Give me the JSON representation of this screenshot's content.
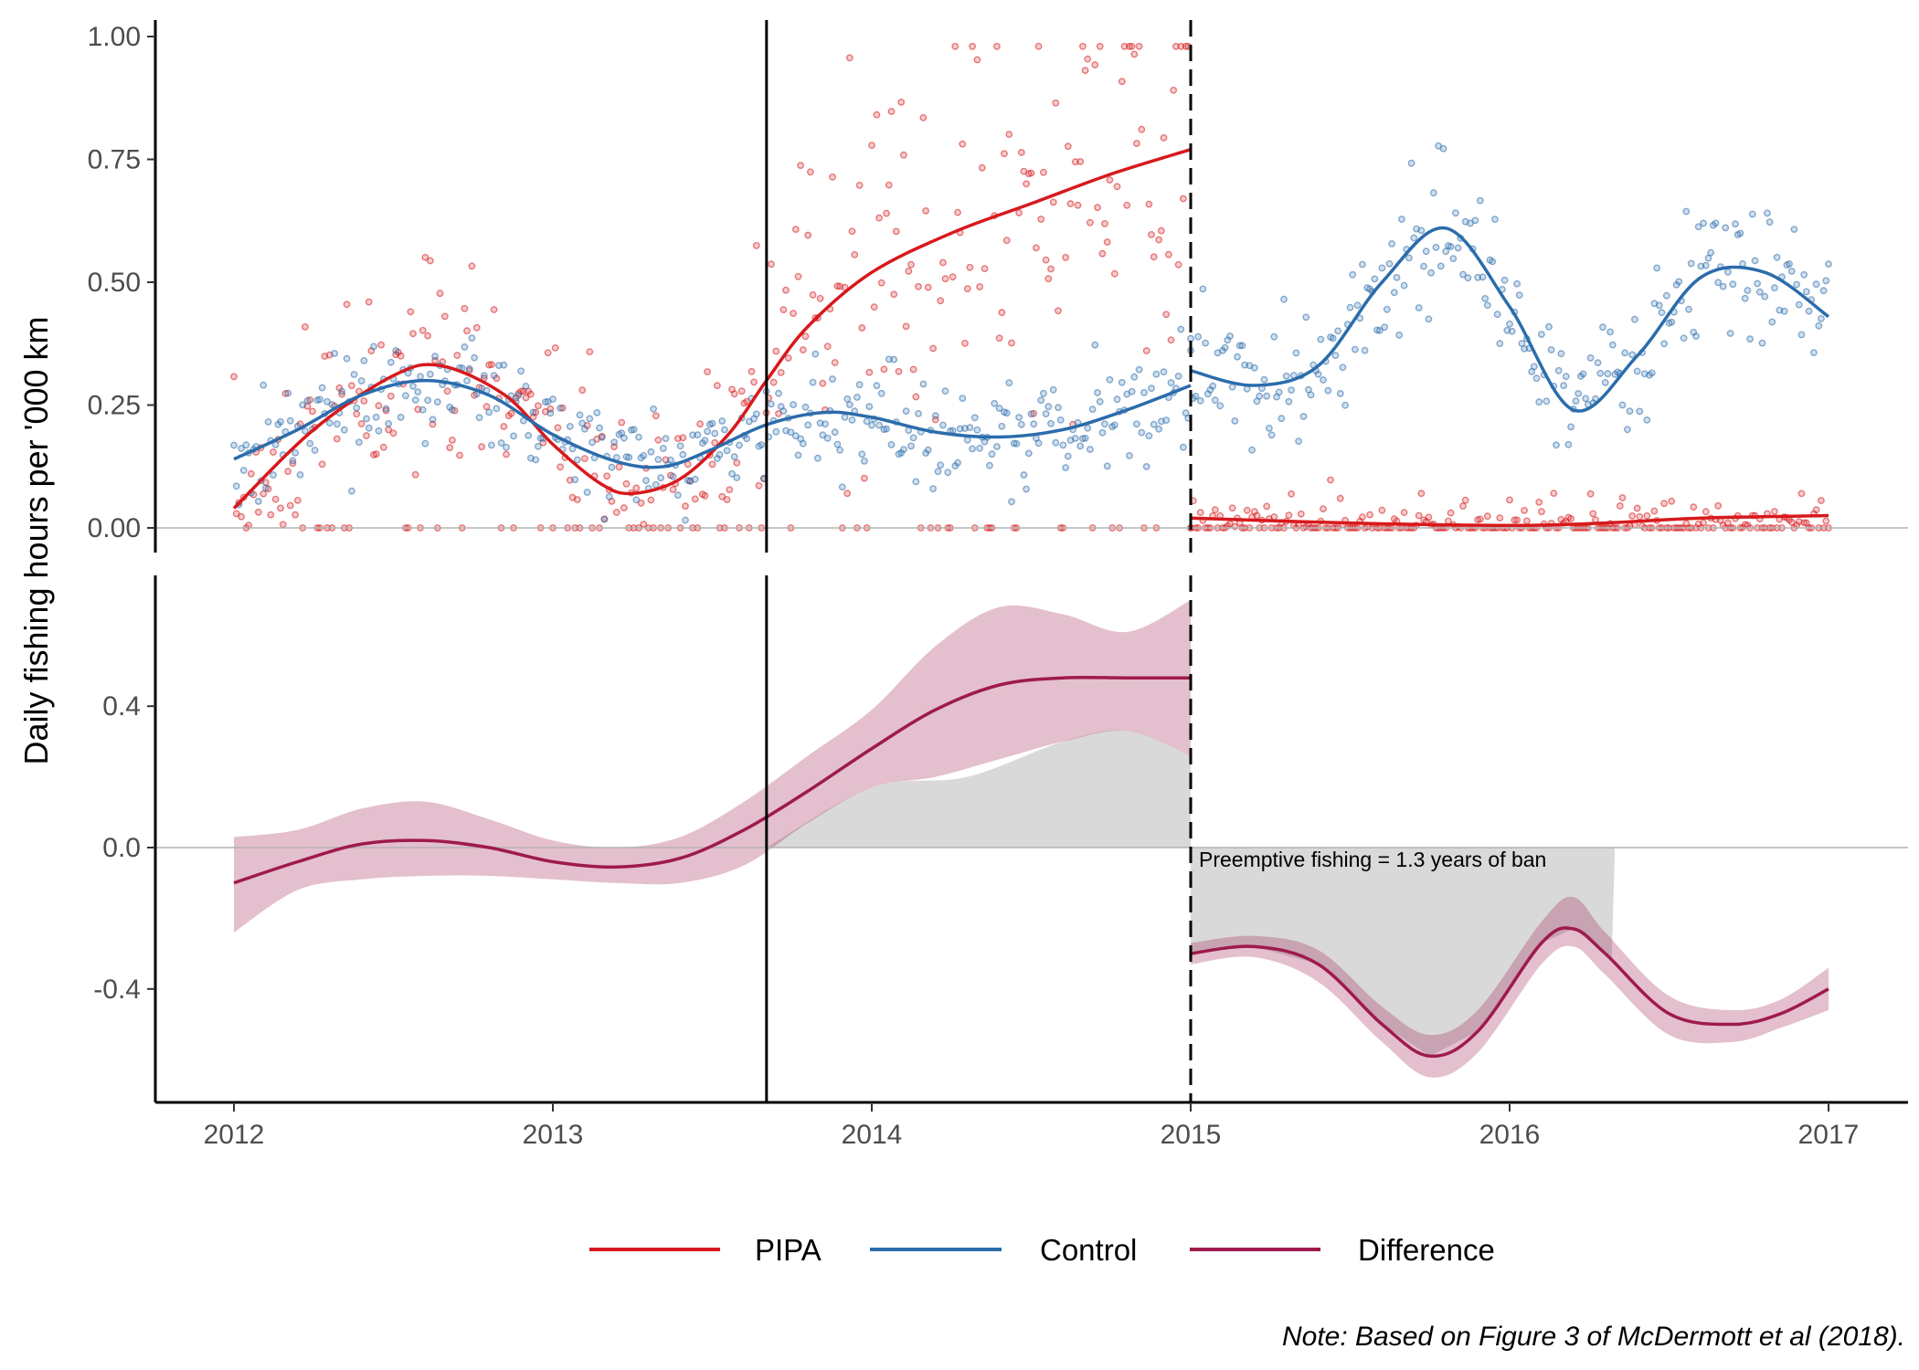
{
  "chart_data": {
    "type": "line",
    "ylabel": "Daily fishing hours per '000 km",
    "x_ticks": [
      "2012",
      "2013",
      "2014",
      "2015",
      "2016",
      "2017"
    ],
    "events": [
      {
        "x": 2013.67,
        "style": "solid"
      },
      {
        "x": 2015.0,
        "style": "dashed"
      }
    ],
    "note": "Note: Based on Figure 3 of McDermott et al (2018).",
    "legend": {
      "position": "bottom",
      "entries": [
        {
          "label": "PIPA",
          "color": "#D7191C"
        },
        {
          "label": "Control",
          "color": "#2B6CAB"
        },
        {
          "label": "Difference",
          "color": "#9E1A4D"
        }
      ]
    },
    "panels": [
      {
        "name": "top",
        "ylim": [
          0,
          1.0
        ],
        "y_ticks": [
          "0.00",
          "0.25",
          "0.50",
          "0.75",
          "1.00"
        ],
        "hline": 0,
        "points_shown": true,
        "series": [
          {
            "name": "PIPA",
            "color": "#D7191C",
            "segments": [
              {
                "x": [
                  2012.0,
                  2012.25,
                  2012.5,
                  2012.65,
                  2012.85,
                  2013.0,
                  2013.15,
                  2013.25,
                  2013.4,
                  2013.55,
                  2013.67,
                  2013.8,
                  2014.0,
                  2014.25,
                  2014.5,
                  2014.75,
                  2015.0
                ],
                "y": [
                  0.04,
                  0.2,
                  0.31,
                  0.33,
                  0.27,
                  0.17,
                  0.09,
                  0.07,
                  0.1,
                  0.19,
                  0.3,
                  0.41,
                  0.52,
                  0.6,
                  0.66,
                  0.72,
                  0.77
                ]
              },
              {
                "x": [
                  2015.0,
                  2015.5,
                  2016.0,
                  2016.3,
                  2016.6,
                  2017.0
                ],
                "y": [
                  0.02,
                  0.01,
                  0.005,
                  0.01,
                  0.02,
                  0.025
                ]
              }
            ]
          },
          {
            "name": "Control",
            "color": "#2B6CAB",
            "segments": [
              {
                "x": [
                  2012.0,
                  2012.2,
                  2012.4,
                  2012.6,
                  2012.8,
                  2013.0,
                  2013.2,
                  2013.35,
                  2013.5,
                  2013.67,
                  2013.85,
                  2014.0,
                  2014.2,
                  2014.4,
                  2014.6,
                  2014.8,
                  2015.0
                ],
                "y": [
                  0.14,
                  0.2,
                  0.27,
                  0.3,
                  0.27,
                  0.19,
                  0.135,
                  0.125,
                  0.16,
                  0.21,
                  0.235,
                  0.225,
                  0.195,
                  0.185,
                  0.2,
                  0.24,
                  0.29
                ]
              },
              {
                "x": [
                  2015.0,
                  2015.2,
                  2015.4,
                  2015.6,
                  2015.8,
                  2016.0,
                  2016.2,
                  2016.4,
                  2016.6,
                  2016.8,
                  2017.0
                ],
                "y": [
                  0.32,
                  0.29,
                  0.33,
                  0.5,
                  0.61,
                  0.45,
                  0.24,
                  0.35,
                  0.51,
                  0.52,
                  0.43
                ]
              }
            ]
          }
        ]
      },
      {
        "name": "bottom",
        "ylim": [
          -0.73,
          0.73
        ],
        "y_ticks": [
          "-0.4",
          "0.0",
          "0.4"
        ],
        "hline": 0,
        "annotation": "Preemptive fishing = 1.3 years of ban",
        "shaded_gray": [
          {
            "x": [
              2013.67,
              2014.0,
              2014.3,
              2014.6,
              2014.8,
              2015.0
            ],
            "lower": [
              0,
              0.17,
              0.2,
              0.3,
              0.33,
              0.26
            ],
            "note": "area between lower CI and 0, 2013.67–2015"
          },
          {
            "x": [
              2015.0,
              2016.33
            ],
            "note": "area between curve and 0, 2015–2016.33"
          }
        ],
        "series": [
          {
            "name": "Difference",
            "color": "#9E1A4D",
            "segments": [
              {
                "x": [
                  2012.0,
                  2012.2,
                  2012.4,
                  2012.6,
                  2012.8,
                  2013.0,
                  2013.2,
                  2013.4,
                  2013.6,
                  2013.8,
                  2014.0,
                  2014.2,
                  2014.4,
                  2014.6,
                  2014.8,
                  2015.0
                ],
                "y": [
                  -0.1,
                  -0.04,
                  0.01,
                  0.02,
                  0.0,
                  -0.04,
                  -0.055,
                  -0.03,
                  0.05,
                  0.16,
                  0.28,
                  0.39,
                  0.46,
                  0.48,
                  0.48,
                  0.48
                ],
                "lower": [
                  -0.24,
                  -0.12,
                  -0.09,
                  -0.08,
                  -0.08,
                  -0.09,
                  -0.1,
                  -0.1,
                  -0.05,
                  0.07,
                  0.17,
                  0.2,
                  0.25,
                  0.3,
                  0.33,
                  0.26
                ],
                "upper": [
                  0.03,
                  0.05,
                  0.11,
                  0.13,
                  0.08,
                  0.02,
                  0.0,
                  0.03,
                  0.13,
                  0.26,
                  0.39,
                  0.57,
                  0.68,
                  0.66,
                  0.61,
                  0.7
                ]
              },
              {
                "x": [
                  2015.0,
                  2015.2,
                  2015.4,
                  2015.6,
                  2015.75,
                  2015.9,
                  2016.1,
                  2016.2,
                  2016.3,
                  2016.5,
                  2016.7,
                  2016.85,
                  2017.0
                ],
                "y": [
                  -0.3,
                  -0.28,
                  -0.33,
                  -0.5,
                  -0.59,
                  -0.52,
                  -0.27,
                  -0.23,
                  -0.3,
                  -0.47,
                  -0.5,
                  -0.47,
                  -0.4
                ],
                "lower": [
                  -0.33,
                  -0.31,
                  -0.38,
                  -0.55,
                  -0.65,
                  -0.58,
                  -0.33,
                  -0.28,
                  -0.36,
                  -0.53,
                  -0.55,
                  -0.51,
                  -0.46
                ],
                "upper": [
                  -0.27,
                  -0.25,
                  -0.29,
                  -0.45,
                  -0.53,
                  -0.46,
                  -0.21,
                  -0.14,
                  -0.24,
                  -0.42,
                  -0.46,
                  -0.43,
                  -0.34
                ]
              }
            ]
          }
        ]
      }
    ]
  }
}
